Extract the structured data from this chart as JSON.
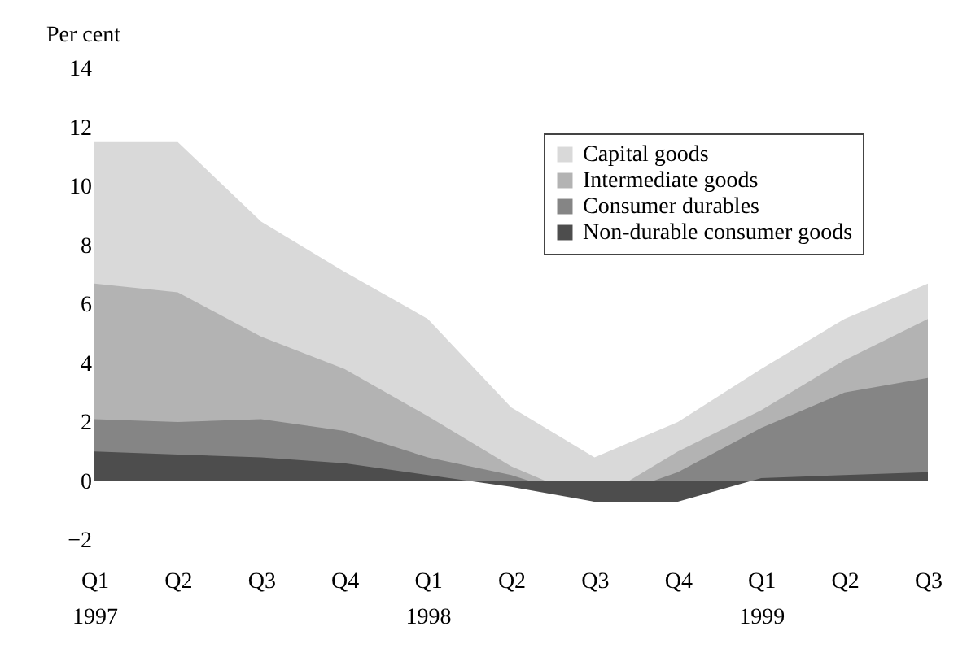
{
  "chart_data": {
    "type": "area",
    "ylabel": "Per cent",
    "categories": [
      "Q1 1997",
      "Q2",
      "Q3",
      "Q4",
      "Q1 1998",
      "Q2",
      "Q3",
      "Q4",
      "Q1 1999",
      "Q2",
      "Q3"
    ],
    "series": [
      {
        "name": "Capital goods",
        "color": "#d9d9d9",
        "values": [
          11.5,
          11.5,
          8.8,
          7.1,
          5.5,
          2.5,
          0.8,
          2.0,
          3.8,
          5.5,
          6.7
        ]
      },
      {
        "name": "Intermediate goods",
        "color": "#b3b3b3",
        "values": [
          6.7,
          6.4,
          4.9,
          3.8,
          2.2,
          0.5,
          -0.7,
          1.0,
          2.4,
          4.1,
          5.5
        ]
      },
      {
        "name": "Consumer durables",
        "color": "#858585",
        "values": [
          2.1,
          2.0,
          2.1,
          1.7,
          0.8,
          0.2,
          -0.7,
          0.3,
          1.8,
          3.0,
          3.5
        ]
      },
      {
        "name": "Non-durable consumer goods",
        "color": "#4d4d4d",
        "values": [
          1.0,
          0.9,
          0.8,
          0.6,
          0.2,
          -0.2,
          -0.7,
          -0.7,
          0.1,
          0.2,
          0.3
        ]
      }
    ],
    "ylim": [
      -2,
      14
    ],
    "yticks": [
      -2,
      0,
      2,
      4,
      6,
      8,
      10,
      12,
      14
    ],
    "grid": false,
    "legend": "top right"
  }
}
